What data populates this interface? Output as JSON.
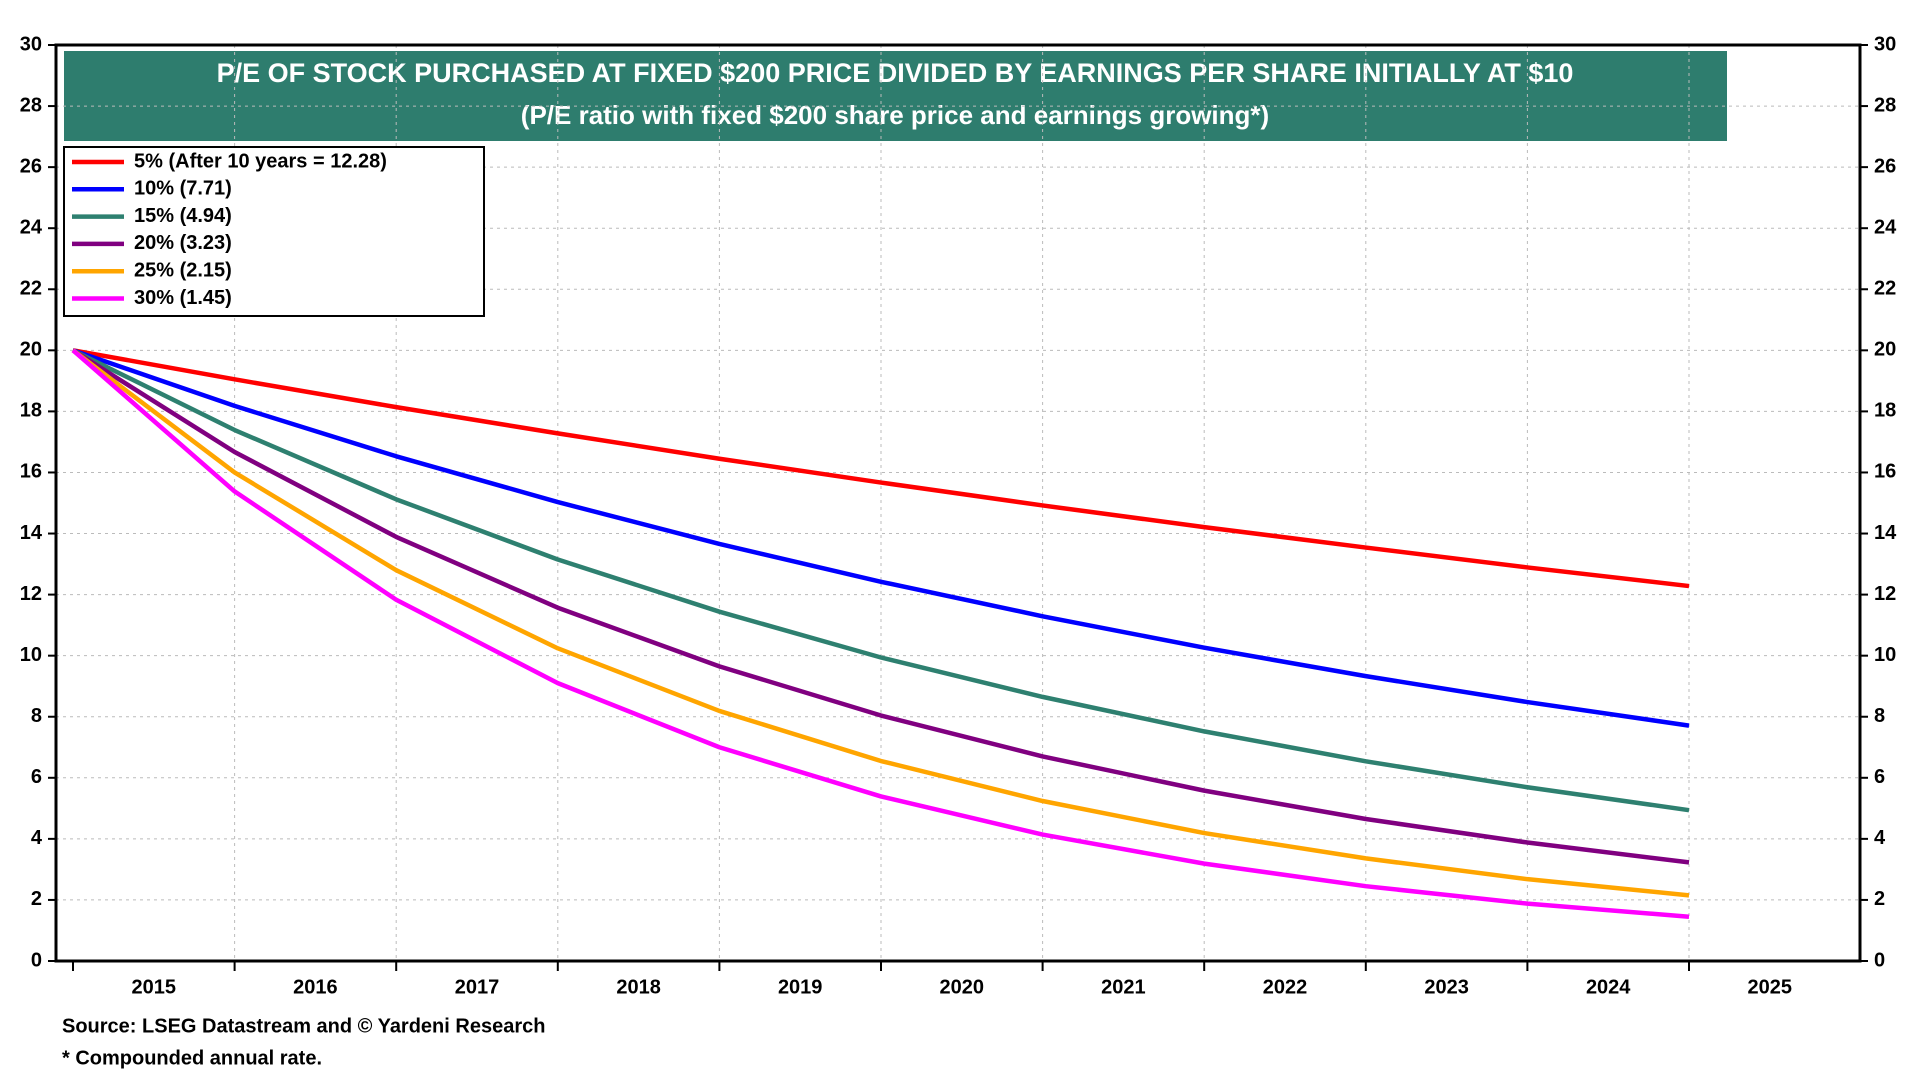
{
  "chart_data": {
    "type": "line",
    "title": "P/E OF STOCK PURCHASED AT FIXED $200 PRICE DIVIDED BY EARNINGS PER SHARE INITIALLY AT $10",
    "subtitle": "(P/E ratio with fixed $200 share price and earnings growing*)",
    "source": "Source: LSEG Datastream and © Yardeni Research",
    "note": "* Compounded annual rate.",
    "categories": [
      "2015",
      "2016",
      "2017",
      "2018",
      "2019",
      "2020",
      "2021",
      "2022",
      "2023",
      "2024",
      "2025"
    ],
    "series": [
      {
        "name": "5% (After 10 years = 12.28)",
        "color": "#ff0000",
        "values": [
          20,
          19.05,
          18.14,
          17.28,
          16.45,
          15.67,
          14.92,
          14.21,
          13.54,
          12.89,
          12.28
        ]
      },
      {
        "name": "10% (7.71)",
        "color": "#0000ff",
        "values": [
          20,
          18.18,
          16.53,
          15.03,
          13.66,
          12.42,
          11.29,
          10.26,
          9.33,
          8.48,
          7.71
        ]
      },
      {
        "name": "15% (4.94)",
        "color": "#2e8070",
        "values": [
          20,
          17.39,
          15.12,
          13.15,
          11.44,
          9.94,
          8.65,
          7.52,
          6.54,
          5.69,
          4.94
        ]
      },
      {
        "name": "20% (3.23)",
        "color": "#800080",
        "values": [
          20,
          16.67,
          13.89,
          11.57,
          9.65,
          8.04,
          6.7,
          5.58,
          4.65,
          3.88,
          3.23
        ]
      },
      {
        "name": "25% (2.15)",
        "color": "#ffa500",
        "values": [
          20,
          16,
          12.8,
          10.24,
          8.19,
          6.55,
          5.24,
          4.19,
          3.36,
          2.68,
          2.15
        ]
      },
      {
        "name": "30% (1.45)",
        "color": "#ff00ff",
        "values": [
          20,
          15.38,
          11.83,
          9.1,
          7.0,
          5.39,
          4.14,
          3.19,
          2.45,
          1.88,
          1.45
        ]
      }
    ],
    "ylim": [
      0,
      30
    ],
    "yticks": [
      0,
      2,
      4,
      6,
      8,
      10,
      12,
      14,
      16,
      18,
      20,
      22,
      24,
      26,
      28,
      30
    ],
    "grid": true,
    "legend": "upper-left",
    "title_background": "#2e7d6e"
  }
}
